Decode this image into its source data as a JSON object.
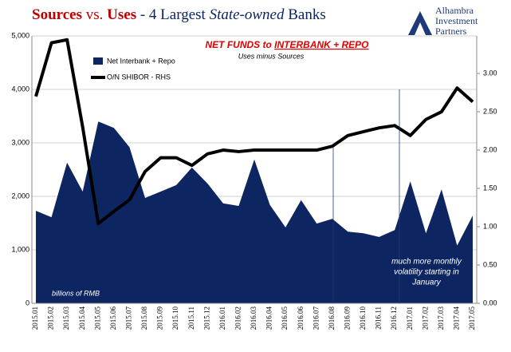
{
  "chart_data": {
    "type": "area_line",
    "title": [
      "Sources",
      " vs. ",
      "Uses",
      " - 4 Largest ",
      "State-owned",
      " Banks"
    ],
    "logo": [
      "Alhambra",
      "Investment",
      "Partners"
    ],
    "annotation_title": [
      "NET FUNDS to ",
      "INTERBANK + REPO"
    ],
    "annotation_subtitle": "Uses minus Sources",
    "y_axis_note": "billions of RMB",
    "note": [
      "much more monthly",
      "volatility starting in",
      "January"
    ],
    "categories": [
      "2015.01",
      "2015.02",
      "2015.03",
      "2015.04",
      "2015.05",
      "2015.06",
      "2015.07",
      "2015.08",
      "2015.09",
      "2015.10",
      "2015.11",
      "2015.12",
      "2016.01",
      "2016.02",
      "2016.03",
      "2016.04",
      "2016.05",
      "2016.06",
      "2016.07",
      "2016.08",
      "2016.09",
      "2016.10",
      "2016.11",
      "2016.12",
      "2017.01",
      "2017.02",
      "2017.03",
      "2017.04",
      "2017.05"
    ],
    "series": [
      {
        "name": "Net Interbank + Repo",
        "color": "#0d2561",
        "values": [
          1730,
          1610,
          2630,
          2090,
          3400,
          3280,
          2920,
          1970,
          2090,
          2210,
          2540,
          2240,
          1870,
          1820,
          2690,
          1840,
          1420,
          1930,
          1490,
          1580,
          1340,
          1310,
          1240,
          1370,
          2280,
          1310,
          2130,
          1080,
          1640
        ]
      },
      {
        "name": "O/N SHIBOR - RHS",
        "color": "#000000",
        "axis": "y2",
        "values": [
          2.7,
          3.4,
          3.44,
          2.3,
          1.04,
          1.2,
          1.35,
          1.72,
          1.9,
          1.9,
          1.8,
          1.95,
          2.0,
          1.98,
          2.0,
          2.0,
          2.0,
          2.0,
          2.0,
          2.05,
          2.19,
          2.24,
          2.29,
          2.32,
          2.19,
          2.4,
          2.5,
          2.81,
          2.63
        ]
      }
    ],
    "ylim": [
      0,
      5000
    ],
    "yticks": [
      0,
      {
        "value": 1000,
        "label": "1,000"
      },
      {
        "value": 2000,
        "label": "2,000"
      },
      {
        "value": 3000,
        "label": "3,000"
      },
      {
        "value": 4000,
        "label": "4,000"
      },
      {
        "value": 5000,
        "label": "5,000"
      }
    ],
    "y2lim": [
      0,
      3.49
    ],
    "y2ticks": [
      {
        "value": 0,
        "label": "0.00"
      },
      {
        "value": 0.5,
        "label": "0.50"
      },
      {
        "value": 1,
        "label": "1.00"
      },
      {
        "value": 1.5,
        "label": "1.50"
      },
      {
        "value": 2,
        "label": "2.00"
      },
      {
        "value": 2.5,
        "label": "2.50"
      },
      {
        "value": 3,
        "label": "3.00"
      }
    ],
    "grid": true
  }
}
